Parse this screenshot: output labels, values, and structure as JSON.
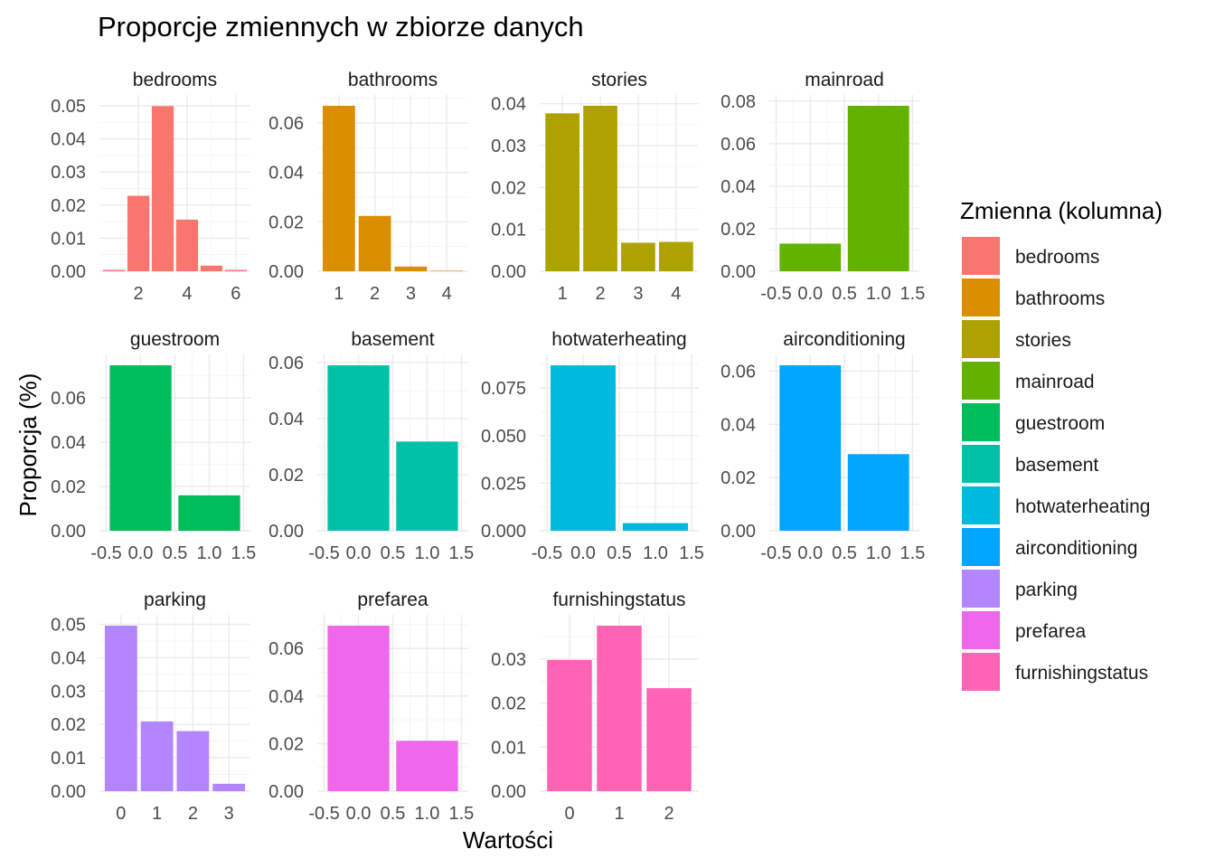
{
  "chart_data": {
    "type": "bar",
    "title": "Proporcje zmiennych w zbiorze danych",
    "xlabel": "Wartości",
    "ylabel": "Proporcja (%)",
    "legend": {
      "title": "Zmienna (kolumna)",
      "position": "right"
    },
    "grid": true,
    "panels": [
      {
        "name": "bedrooms",
        "color": "#F8766D",
        "x": [
          1,
          2,
          3,
          4,
          5,
          6
        ],
        "values": [
          0.0004,
          0.0228,
          0.0499,
          0.0156,
          0.0017,
          0.0004
        ],
        "xlim": [
          0.4,
          6.6
        ],
        "xticks": [
          2,
          4,
          6
        ],
        "xticklabels": [
          "2",
          "4",
          "6"
        ],
        "ylim": [
          0,
          0.05
        ],
        "yticks": [
          0,
          0.01,
          0.02,
          0.03,
          0.04,
          0.05
        ],
        "yticklabels": [
          "0.00",
          "0.01",
          "0.02",
          "0.03",
          "0.04",
          "0.05"
        ]
      },
      {
        "name": "bathrooms",
        "color": "#DB8E00",
        "x": [
          1,
          2,
          3,
          4
        ],
        "values": [
          0.067,
          0.0224,
          0.0019,
          0.0002
        ],
        "xlim": [
          0.4,
          4.6
        ],
        "xticks": [
          1,
          2,
          3,
          4
        ],
        "xticklabels": [
          "1",
          "2",
          "3",
          "4"
        ],
        "ylim": [
          0,
          0.067
        ],
        "yticks": [
          0,
          0.02,
          0.04,
          0.06
        ],
        "yticklabels": [
          "0.00",
          "0.02",
          "0.04",
          "0.06"
        ]
      },
      {
        "name": "stories",
        "color": "#AEA200",
        "x": [
          1,
          2,
          3,
          4
        ],
        "values": [
          0.0377,
          0.0395,
          0.0068,
          0.007
        ],
        "xlim": [
          0.4,
          4.6
        ],
        "xticks": [
          1,
          2,
          3,
          4
        ],
        "xticklabels": [
          "1",
          "2",
          "3",
          "4"
        ],
        "ylim": [
          0,
          0.0395
        ],
        "yticks": [
          0,
          0.01,
          0.02,
          0.03,
          0.04
        ],
        "yticklabels": [
          "0.00",
          "0.01",
          "0.02",
          "0.03",
          "0.04"
        ]
      },
      {
        "name": "mainroad",
        "color": "#64B200",
        "x": [
          0,
          1
        ],
        "values": [
          0.013,
          0.0778
        ],
        "xlim": [
          -0.6,
          1.6
        ],
        "xticks": [
          -0.5,
          0,
          0.5,
          1,
          1.5
        ],
        "xticklabels": [
          "-0.5",
          "0.0",
          "0.5",
          "1.0",
          "1.5"
        ],
        "ylim": [
          0,
          0.0778
        ],
        "yticks": [
          0,
          0.02,
          0.04,
          0.06,
          0.08
        ],
        "yticklabels": [
          "0.00",
          "0.02",
          "0.04",
          "0.06",
          "0.08"
        ]
      },
      {
        "name": "guestroom",
        "color": "#00BD5C",
        "x": [
          0,
          1
        ],
        "values": [
          0.0748,
          0.016
        ],
        "xlim": [
          -0.6,
          1.6
        ],
        "xticks": [
          -0.5,
          0,
          0.5,
          1,
          1.5
        ],
        "xticklabels": [
          "-0.5",
          "0.0",
          "0.5",
          "1.0",
          "1.5"
        ],
        "ylim": [
          0,
          0.0748
        ],
        "yticks": [
          0,
          0.02,
          0.04,
          0.06
        ],
        "yticklabels": [
          "0.00",
          "0.02",
          "0.04",
          "0.06"
        ]
      },
      {
        "name": "basement",
        "color": "#00C1A7",
        "x": [
          0,
          1
        ],
        "values": [
          0.059,
          0.0318
        ],
        "xlim": [
          -0.6,
          1.6
        ],
        "xticks": [
          -0.5,
          0,
          0.5,
          1,
          1.5
        ],
        "xticklabels": [
          "-0.5",
          "0.0",
          "0.5",
          "1.0",
          "1.5"
        ],
        "ylim": [
          0,
          0.059
        ],
        "yticks": [
          0,
          0.02,
          0.04,
          0.06
        ],
        "yticklabels": [
          "0.00",
          "0.02",
          "0.04",
          "0.06"
        ]
      },
      {
        "name": "hotwaterheating",
        "color": "#00BADE",
        "x": [
          0,
          1
        ],
        "values": [
          0.087,
          0.004
        ],
        "xlim": [
          -0.6,
          1.6
        ],
        "xticks": [
          -0.5,
          0,
          0.5,
          1,
          1.5
        ],
        "xticklabels": [
          "-0.5",
          "0.0",
          "0.5",
          "1.0",
          "1.5"
        ],
        "ylim": [
          0,
          0.087
        ],
        "yticks": [
          0,
          0.025,
          0.05,
          0.075
        ],
        "yticklabels": [
          "0.000",
          "0.025",
          "0.050",
          "0.075"
        ]
      },
      {
        "name": "airconditioning",
        "color": "#00A6FF",
        "x": [
          0,
          1
        ],
        "values": [
          0.0622,
          0.0288
        ],
        "xlim": [
          -0.6,
          1.6
        ],
        "xticks": [
          -0.5,
          0,
          0.5,
          1,
          1.5
        ],
        "xticklabels": [
          "-0.5",
          "0.0",
          "0.5",
          "1.0",
          "1.5"
        ],
        "ylim": [
          0,
          0.0622
        ],
        "yticks": [
          0,
          0.02,
          0.04,
          0.06
        ],
        "yticklabels": [
          "0.00",
          "0.02",
          "0.04",
          "0.06"
        ]
      },
      {
        "name": "parking",
        "color": "#B385FF",
        "x": [
          0,
          1,
          2,
          3
        ],
        "values": [
          0.0496,
          0.0209,
          0.018,
          0.0022
        ],
        "xlim": [
          -0.6,
          3.6
        ],
        "xticks": [
          0,
          1,
          2,
          3
        ],
        "xticklabels": [
          "0",
          "1",
          "2",
          "3"
        ],
        "ylim": [
          0,
          0.0496
        ],
        "yticks": [
          0,
          0.01,
          0.02,
          0.03,
          0.04,
          0.05
        ],
        "yticklabels": [
          "0.00",
          "0.01",
          "0.02",
          "0.03",
          "0.04",
          "0.05"
        ]
      },
      {
        "name": "prefarea",
        "color": "#EF67EB",
        "x": [
          0,
          1
        ],
        "values": [
          0.0696,
          0.0212
        ],
        "xlim": [
          -0.6,
          1.6
        ],
        "xticks": [
          -0.5,
          0,
          0.5,
          1,
          1.5
        ],
        "xticklabels": [
          "-0.5",
          "0.0",
          "0.5",
          "1.0",
          "1.5"
        ],
        "ylim": [
          0,
          0.0696
        ],
        "yticks": [
          0,
          0.02,
          0.04,
          0.06
        ],
        "yticklabels": [
          "0.00",
          "0.02",
          "0.04",
          "0.06"
        ]
      },
      {
        "name": "furnishingstatus",
        "color": "#FF63B6",
        "x": [
          0,
          1,
          2
        ],
        "values": [
          0.0298,
          0.0376,
          0.0234
        ],
        "xlim": [
          -0.6,
          2.6
        ],
        "xticks": [
          0,
          1,
          2
        ],
        "xticklabels": [
          "0",
          "1",
          "2"
        ],
        "ylim": [
          0,
          0.0376
        ],
        "yticks": [
          0,
          0.01,
          0.02,
          0.03
        ],
        "yticklabels": [
          "0.00",
          "0.01",
          "0.02",
          "0.03"
        ]
      }
    ]
  }
}
